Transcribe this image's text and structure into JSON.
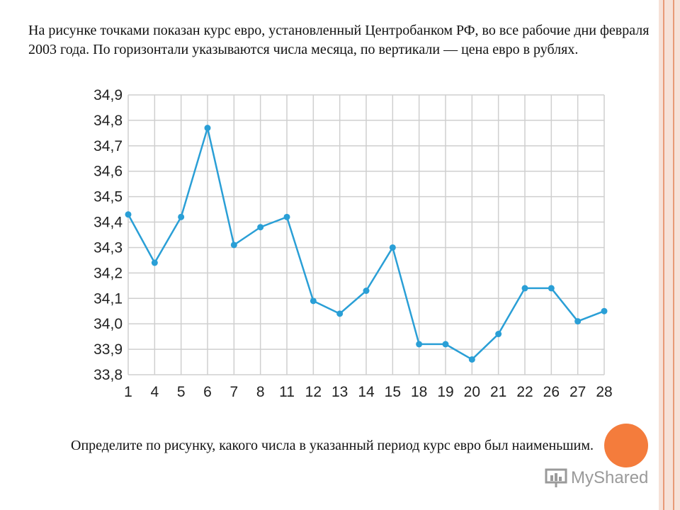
{
  "slide": {
    "title": "На рисунке точками показан курс евро, установленный Центробанком РФ, во все рабочие дни февраля 2003 года. По горизонтали указываются числа месяца, по вертикали — цена евро в рублях.",
    "question": "Определите по рисунку, какого числа в указанный период курс евро был наименьшим.",
    "logo_text": "MyShared"
  },
  "colors": {
    "line": "#2a9fd6",
    "grid": "#cfcfcf",
    "accent_circle": "#f47c3c",
    "border": "#e89a78"
  },
  "chart_data": {
    "type": "line",
    "title": "",
    "xlabel": "",
    "ylabel": "",
    "categories": [
      "1",
      "4",
      "5",
      "6",
      "7",
      "8",
      "11",
      "12",
      "13",
      "14",
      "15",
      "18",
      "19",
      "20",
      "21",
      "22",
      "26",
      "27",
      "28"
    ],
    "series": [
      {
        "values": [
          34.43,
          34.24,
          34.42,
          34.77,
          34.31,
          34.38,
          34.42,
          34.09,
          34.04,
          34.13,
          34.3,
          33.92,
          33.92,
          33.86,
          33.96,
          34.14,
          34.14,
          34.01,
          34.05
        ]
      }
    ],
    "ylim": [
      33.8,
      34.9
    ],
    "yticks": [
      "33,8",
      "33,9",
      "34,0",
      "34,1",
      "34,2",
      "34,3",
      "34,4",
      "34,5",
      "34,6",
      "34,7",
      "34,8",
      "34,9"
    ],
    "grid": true,
    "markers": true
  }
}
